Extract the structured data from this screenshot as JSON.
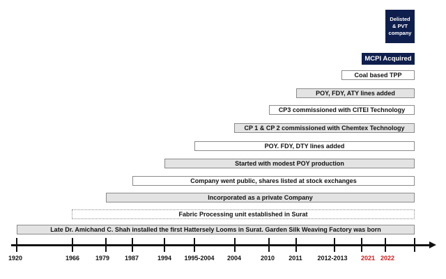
{
  "boxes": {
    "delisted": [
      "Delisted",
      "& PVT",
      "company"
    ],
    "mcpi": "MCPI Acquired"
  },
  "milestones": [
    "Late Dr. Amichand C. Shah  installed the first Hattersely Looms in Surat. Garden Silk Weaving Factory was born",
    "Fabric Processing unit established in Surat",
    "Incorporated as a private Company",
    "Company went public, shares listed at stock exchanges",
    "Started with modest POY production",
    "POY. FDY, DTY lines added",
    "CP 1 & CP 2 commissioned with Chemtex Technology",
    "CP3 commissioned with CITEI Technology",
    "POY, FDY, ATY lines added",
    "Coal based TPP"
  ],
  "years": [
    "1920",
    "1966",
    "1979",
    "1987",
    "1994",
    "1995-2004",
    "2004",
    "2010",
    "2011",
    "2012-2013",
    "2021",
    "2022"
  ],
  "colors": {
    "box": "#0f1f4d",
    "highlight_year": "#d21a1a",
    "bar_fill": "#e3e3e3"
  }
}
